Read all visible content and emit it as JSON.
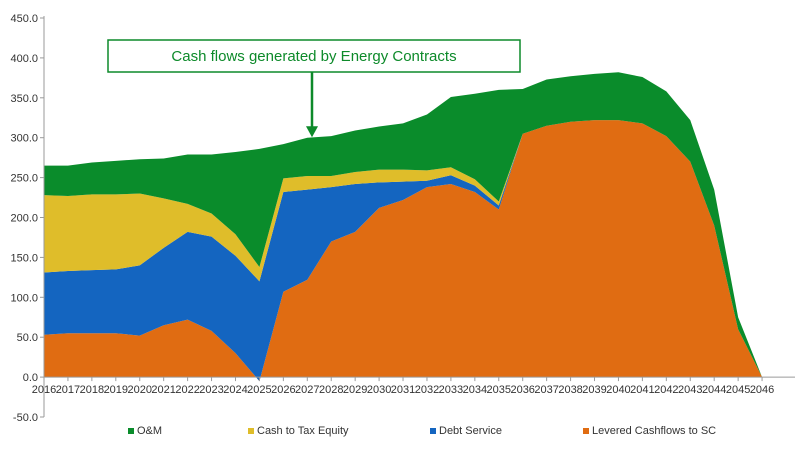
{
  "chart_data": {
    "type": "area",
    "stacked": true,
    "title": "",
    "xlabel": "",
    "ylabel": "",
    "ylim": [
      -50,
      450
    ],
    "y_ticks": [
      "-50.0",
      "0.0",
      "50.0",
      "100.0",
      "150.0",
      "200.0",
      "250.0",
      "300.0",
      "350.0",
      "400.0",
      "450.0"
    ],
    "y_tick_values": [
      -50,
      0,
      50,
      100,
      150,
      200,
      250,
      300,
      350,
      400,
      450
    ],
    "x": [
      "2016",
      "2017",
      "2018",
      "2019",
      "2020",
      "2021",
      "2022",
      "2023",
      "2024",
      "2025",
      "2026",
      "2027",
      "2028",
      "2029",
      "2030",
      "2031",
      "2032",
      "2033",
      "2034",
      "2035",
      "2036",
      "2037",
      "2038",
      "2039",
      "2040",
      "2041",
      "2042",
      "2043",
      "2044",
      "2045",
      "2046"
    ],
    "series": [
      {
        "name": "Levered Cashflows to SC",
        "color": "#e06c12",
        "values": [
          53,
          55,
          55,
          55,
          52,
          65,
          72,
          58,
          30,
          -5,
          107,
          122,
          170,
          182,
          212,
          222,
          238,
          242,
          232,
          210,
          305,
          315,
          320,
          322,
          322,
          318,
          302,
          270,
          190,
          60,
          0
        ]
      },
      {
        "name": "Debt Service",
        "color": "#1465c0",
        "values": [
          78,
          78,
          79,
          80,
          88,
          97,
          110,
          118,
          122,
          125,
          125,
          113,
          68,
          60,
          32,
          23,
          8,
          11,
          8,
          5,
          0,
          0,
          0,
          0,
          0,
          0,
          0,
          0,
          0,
          0,
          0
        ]
      },
      {
        "name": "Cash to Tax Equity",
        "color": "#dfbd2a",
        "values": [
          97,
          94,
          95,
          94,
          90,
          62,
          35,
          29,
          27,
          18,
          17,
          17,
          14,
          15,
          16,
          15,
          13,
          10,
          8,
          5,
          0,
          0,
          0,
          0,
          0,
          0,
          0,
          0,
          0,
          0,
          0
        ]
      },
      {
        "name": "O&M",
        "color": "#0a8c2b",
        "values": [
          37,
          38,
          40,
          42,
          43,
          50,
          62,
          74,
          103,
          148,
          43,
          48,
          50,
          52,
          54,
          58,
          70,
          88,
          107,
          140,
          56,
          58,
          57,
          58,
          60,
          58,
          56,
          52,
          45,
          15,
          0
        ]
      }
    ],
    "legend": {
      "placement": "bottom",
      "order": [
        "O&M",
        "Cash to Tax Equity",
        "Debt Service",
        "Levered Cashflows to SC"
      ]
    },
    "annotations": [
      {
        "text": "Cash flows generated by Energy Contracts",
        "color": "#0d8a2a",
        "arrow_to_x": "2027",
        "arrow_to_y": 298
      }
    ],
    "grid": false
  }
}
